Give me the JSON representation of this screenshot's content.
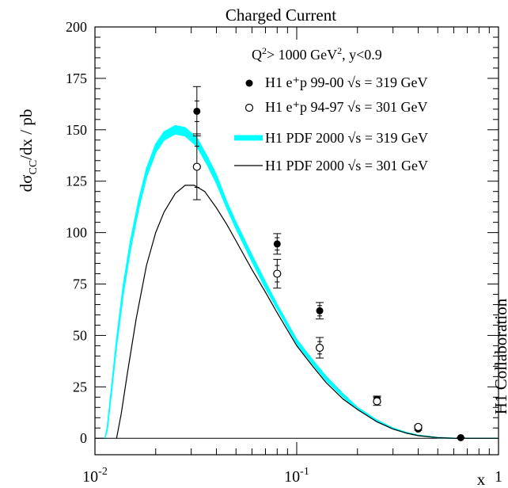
{
  "chart_data": {
    "type": "scatter",
    "title": "Charged Current",
    "ylabel_parts": {
      "main": "dσ",
      "sub": "CC",
      "tail": "/dx  / pb"
    },
    "xlabel": "x",
    "side_label": "H1 Collaboration",
    "xscale": "log",
    "xlim": [
      0.01,
      1
    ],
    "ylim": [
      -8,
      200
    ],
    "x_ticks": [
      {
        "base": "10",
        "exp": "-2",
        "value": 0.01
      },
      {
        "base": "10",
        "exp": "-1",
        "value": 0.1
      },
      {
        "base": "1",
        "exp": "",
        "value": 1
      }
    ],
    "y_ticks": [
      "0",
      "25",
      "50",
      "75",
      "100",
      "125",
      "150",
      "175",
      "200"
    ],
    "legend_header": {
      "q": "Q",
      "q_exp": "2",
      "rest": "> 1000 GeV",
      "gev_exp": "2",
      "tail": ", y<0.9"
    },
    "legend": [
      {
        "marker": "filled-circle",
        "label": "H1 e⁺p 99-00  √s = 319 GeV"
      },
      {
        "marker": "open-circle",
        "label": "H1 e⁺p 94-97  √s = 301 GeV"
      },
      {
        "marker": "cyan-band",
        "label": "H1 PDF 2000 √s = 319 GeV"
      },
      {
        "marker": "thin-line",
        "label": "H1 PDF 2000 √s = 301 GeV"
      }
    ],
    "series": [
      {
        "name": "H1 e⁺p 99-00  √s = 319 GeV",
        "marker": "filled",
        "points": [
          {
            "x": 0.032,
            "y": 159,
            "err_stat": 5,
            "err_tot": 12
          },
          {
            "x": 0.08,
            "y": 94.5,
            "err_stat": 3,
            "err_tot": 5
          },
          {
            "x": 0.13,
            "y": 62,
            "err_stat": 2.5,
            "err_tot": 4
          },
          {
            "x": 0.25,
            "y": 19,
            "err_stat": 1,
            "err_tot": 1.5
          },
          {
            "x": 0.4,
            "y": 4.5,
            "err_stat": 0.4,
            "err_tot": 0.6
          },
          {
            "x": 0.65,
            "y": 0.3,
            "err_stat": 0.1,
            "err_tot": 0.15
          }
        ]
      },
      {
        "name": "H1 e⁺p 94-97  √s = 301 GeV",
        "marker": "open",
        "points": [
          {
            "x": 0.032,
            "y": 132,
            "err_stat": 10,
            "err_tot": 16
          },
          {
            "x": 0.08,
            "y": 80,
            "err_stat": 4,
            "err_tot": 7
          },
          {
            "x": 0.13,
            "y": 44,
            "err_stat": 3,
            "err_tot": 5
          },
          {
            "x": 0.25,
            "y": 18,
            "err_stat": 1,
            "err_tot": 2
          },
          {
            "x": 0.4,
            "y": 5.5,
            "err_stat": 0.5,
            "err_tot": 0.8
          }
        ]
      }
    ],
    "curves": [
      {
        "name": "H1 PDF 2000 √s = 319 GeV",
        "style": "band",
        "color": "#00ffff",
        "x": [
          0.0112,
          0.0115,
          0.012,
          0.0128,
          0.0138,
          0.015,
          0.0165,
          0.018,
          0.02,
          0.022,
          0.025,
          0.028,
          0.032,
          0.036,
          0.04,
          0.045,
          0.05,
          0.06,
          0.07,
          0.08,
          0.1,
          0.12,
          0.14,
          0.17,
          0.2,
          0.25,
          0.3,
          0.35,
          0.4,
          0.5,
          0.6,
          0.7,
          1.0
        ],
        "lo": [
          0,
          4,
          20,
          45,
          70,
          92,
          112,
          127,
          139,
          145,
          148,
          147,
          142,
          133,
          124,
          112,
          102,
          86,
          73,
          63,
          46,
          36,
          28,
          20,
          14,
          8,
          4.5,
          2.5,
          1.3,
          0.3,
          0,
          0,
          0
        ],
        "hi": [
          0,
          5,
          22,
          48,
          74,
          96,
          116,
          131,
          143,
          149,
          152,
          151,
          146,
          137,
          128,
          115,
          105,
          89,
          76,
          65,
          48,
          38,
          30,
          21.5,
          15,
          8.8,
          5,
          2.8,
          1.5,
          0.4,
          0.05,
          0,
          0
        ]
      },
      {
        "name": "H1 PDF 2000 √s = 301 GeV",
        "style": "line",
        "color": "#000000",
        "x": [
          0.0128,
          0.0135,
          0.0145,
          0.016,
          0.018,
          0.02,
          0.022,
          0.025,
          0.028,
          0.031,
          0.035,
          0.04,
          0.045,
          0.05,
          0.06,
          0.07,
          0.08,
          0.1,
          0.12,
          0.14,
          0.17,
          0.2,
          0.25,
          0.3,
          0.35,
          0.4,
          0.5,
          0.6,
          0.7,
          1.0
        ],
        "y": [
          0,
          12,
          32,
          58,
          84,
          100,
          110,
          119,
          123,
          123,
          120,
          112,
          104,
          96,
          82,
          71,
          61,
          45,
          35,
          27,
          19,
          14,
          8,
          4.5,
          2.5,
          1.3,
          0.3,
          0,
          0,
          0
        ]
      }
    ]
  }
}
